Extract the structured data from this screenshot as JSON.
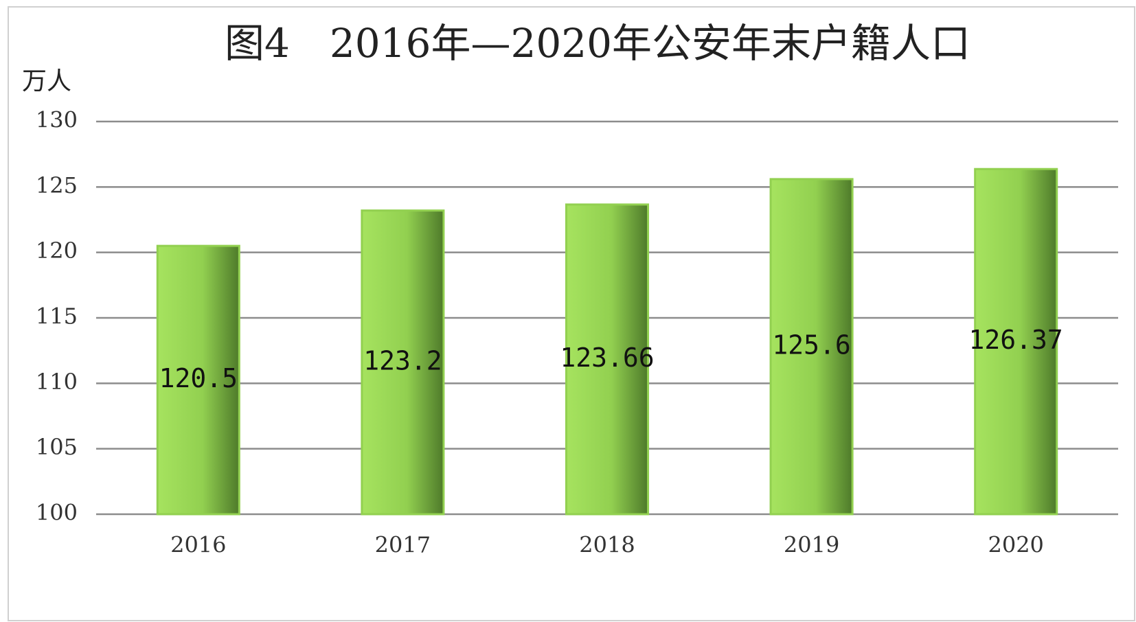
{
  "chart_data": {
    "type": "bar",
    "title": "图4　2016年—2020年公安年末户籍人口",
    "y_unit": "万人",
    "categories": [
      "2016",
      "2017",
      "2018",
      "2019",
      "2020"
    ],
    "values": [
      120.5,
      123.2,
      123.66,
      125.6,
      126.37
    ],
    "color": "#92d050",
    "ylim": [
      100,
      130
    ],
    "yticks": [
      100,
      105,
      110,
      115,
      120,
      125,
      130
    ],
    "grid": true,
    "data_labels": true
  }
}
